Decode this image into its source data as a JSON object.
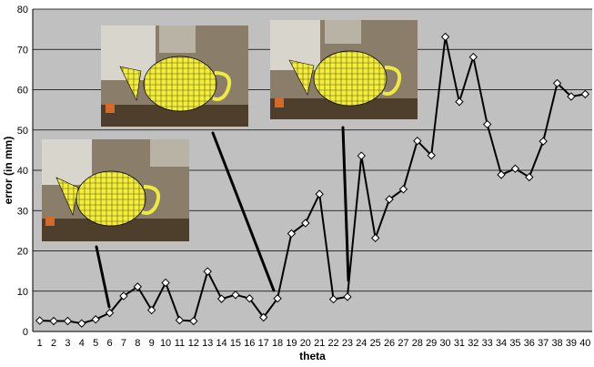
{
  "chart_data": {
    "type": "line",
    "title": "",
    "xlabel": "theta",
    "ylabel": "error (in mm)",
    "x": [
      1,
      2,
      3,
      4,
      5,
      6,
      7,
      8,
      9,
      10,
      11,
      12,
      13,
      14,
      15,
      16,
      17,
      18,
      19,
      20,
      21,
      22,
      23,
      24,
      25,
      26,
      27,
      28,
      29,
      30,
      31,
      32,
      33,
      34,
      35,
      36,
      37,
      38,
      39,
      40
    ],
    "series": [
      {
        "values": [
          2.7,
          2.6,
          2.6,
          2.0,
          3.0,
          4.6,
          8.8,
          11.1,
          5.3,
          12.1,
          2.8,
          2.6,
          14.9,
          8.1,
          9.1,
          8.2,
          3.5,
          8.2,
          24.3,
          26.9,
          34.1,
          8.0,
          8.6,
          43.6,
          23.2,
          32.8,
          35.3,
          47.3,
          43.7,
          73.1,
          57.0,
          68.1,
          51.4,
          38.9,
          40.4,
          38.3,
          47.2,
          61.6,
          58.3,
          58.9
        ]
      }
    ],
    "ylim": [
      0,
      80
    ],
    "yticks": [
      0,
      10,
      20,
      30,
      40,
      50,
      60,
      70,
      80
    ],
    "grid": true,
    "plot_background": "#c0c0c0",
    "line_color": "#000000",
    "marker": "diamond-open",
    "annotations": [
      {
        "name": "teapot-inset-left",
        "points_to_x": 6
      },
      {
        "name": "teapot-inset-middle",
        "points_to_x": 17.4
      },
      {
        "name": "teapot-inset-right",
        "points_to_x": 22.8
      }
    ]
  }
}
